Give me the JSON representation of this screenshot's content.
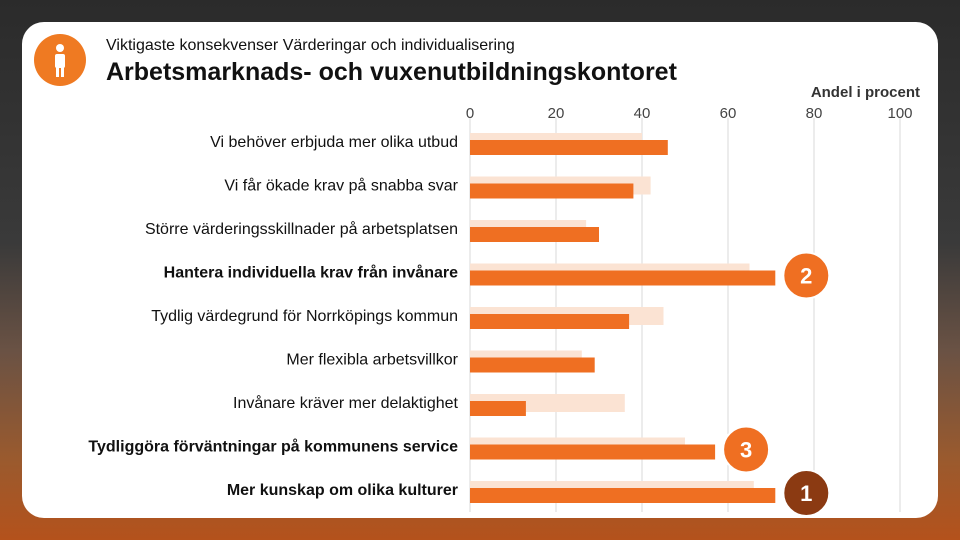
{
  "header": {
    "subtitle": "Viktigaste konsekvenser Värderingar och individualisering",
    "title": "Arbetsmarknads- och vuxenutbildningskontoret"
  },
  "colors": {
    "accent": "#ef7a22",
    "series_light": "#fbe3d3",
    "series_dark": "#ef6f22",
    "rank_top": "#8b3a12",
    "grid": "#d9d9d9"
  },
  "icons": {
    "badge": "person-icon"
  },
  "chart_data": {
    "type": "bar",
    "orientation": "horizontal",
    "title": "Arbetsmarknads- och vuxenutbildningskontoret",
    "unit_label": "Andel i procent",
    "xlim": [
      0,
      100
    ],
    "ticks": [
      0,
      20,
      40,
      60,
      80,
      100
    ],
    "grid": true,
    "categories": [
      "Vi behöver erbjuda mer olika utbud",
      "Vi får ökade krav på snabba svar",
      "Större värderingsskillnader på arbetsplatsen",
      "Hantera individuella krav från invånare",
      "Tydlig värdegrund för Norrköpings kommun",
      "Mer flexibla arbetsvillkor",
      "Invånare kräver mer delaktighet",
      "Tydliggöra förväntningar på kommunens service",
      "Mer kunskap om olika kulturer"
    ],
    "bold_categories": [
      3,
      7,
      8
    ],
    "series": [
      {
        "values": [
          40,
          42,
          27,
          65,
          45,
          26,
          36,
          50,
          66
        ]
      },
      {
        "values": [
          46,
          38,
          30,
          71,
          37,
          29,
          13,
          57,
          71
        ]
      }
    ],
    "rank_markers": [
      {
        "category_index": 3,
        "label": "2"
      },
      {
        "category_index": 7,
        "label": "3"
      },
      {
        "category_index": 8,
        "label": "1"
      }
    ]
  }
}
